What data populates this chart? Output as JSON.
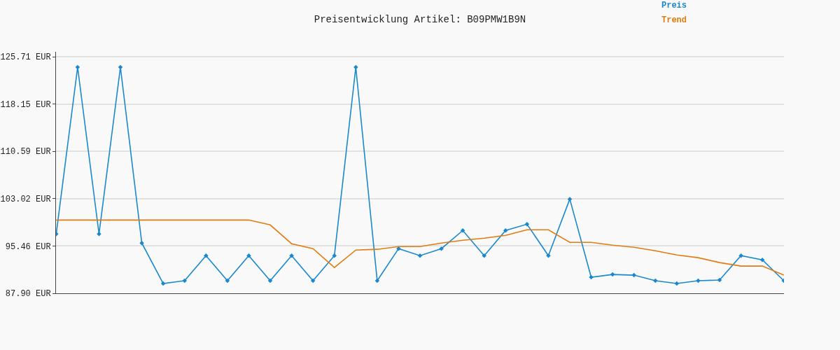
{
  "chart_data": {
    "type": "line",
    "title": "Preisentwicklung Artikel: B09PMW1B9N",
    "categories": [
      null,
      null,
      null,
      null,
      null,
      null,
      null,
      null,
      null,
      null,
      null,
      null,
      null,
      null,
      null,
      null,
      null,
      null,
      null,
      null,
      null,
      null,
      null,
      null,
      null,
      null,
      null,
      null,
      null,
      null,
      null,
      null,
      null,
      null,
      null
    ],
    "series": [
      {
        "name": "Preis",
        "color": "#1a88cc",
        "marker": "diamond",
        "values": [
          97.38,
          124.04,
          97.38,
          124.04,
          95.93,
          89.46,
          89.91,
          93.92,
          89.91,
          93.92,
          89.91,
          93.92,
          89.91,
          93.92,
          124.04,
          89.91,
          95.04,
          93.92,
          95.04,
          97.94,
          93.92,
          97.94,
          98.94,
          93.92,
          102.96,
          90.47,
          90.91,
          90.8,
          89.91,
          89.46,
          89.91,
          90.02,
          93.92,
          93.25,
          89.91
        ]
      },
      {
        "name": "Trend",
        "color": "#e07c10",
        "marker": "none",
        "values": [
          99.61,
          99.61,
          99.61,
          99.61,
          99.61,
          99.61,
          99.61,
          99.61,
          99.61,
          99.61,
          98.83,
          95.82,
          95.04,
          92.03,
          94.81,
          94.93,
          95.37,
          95.37,
          95.93,
          96.38,
          96.71,
          97.16,
          98.05,
          98.05,
          96.04,
          96.04,
          95.6,
          95.26,
          94.7,
          94.03,
          93.59,
          92.81,
          92.25,
          92.25,
          90.8
        ]
      }
    ],
    "ylim": [
      87.9,
      126.5
    ],
    "yticks": [
      {
        "value": 87.9,
        "label": "87.90 EUR"
      },
      {
        "value": 95.46,
        "label": "95.46 EUR"
      },
      {
        "value": 103.02,
        "label": "103.02 EUR"
      },
      {
        "value": 110.59,
        "label": "110.59 EUR"
      },
      {
        "value": 118.15,
        "label": "118.15 EUR"
      },
      {
        "value": 125.71,
        "label": "125.71 EUR"
      }
    ],
    "grid": "y",
    "legend": "top right",
    "line_style": "solid"
  }
}
